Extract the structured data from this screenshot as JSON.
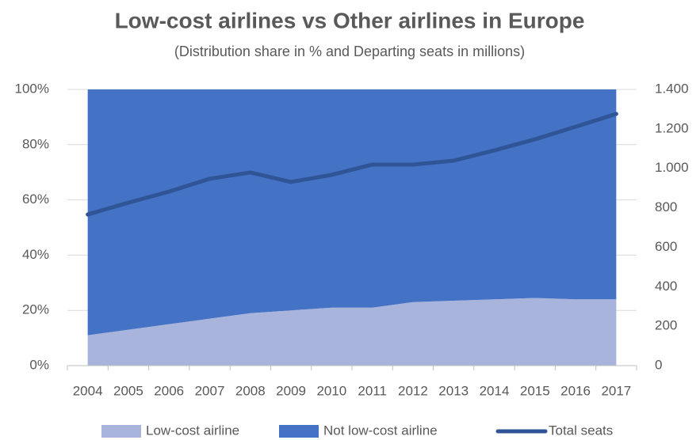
{
  "chart_data": {
    "type": "stacked-area-line",
    "title": "Low-cost airlines vs Other airlines in Europe",
    "subtitle": "(Distribution share in % and Departing seats in millions)",
    "categories": [
      "2004",
      "2005",
      "2006",
      "2007",
      "2008",
      "2009",
      "2010",
      "2011",
      "2012",
      "2013",
      "2014",
      "2015",
      "2016",
      "2017"
    ],
    "series": [
      {
        "name": "Low-cost airline",
        "color": "#a9b4dc",
        "kind": "area",
        "values": [
          11,
          13,
          15,
          17,
          19,
          20,
          21,
          21,
          23,
          23.5,
          24,
          24.5,
          24,
          24
        ]
      },
      {
        "name": "Not low-cost airline",
        "color": "#4472c4",
        "kind": "area",
        "values": [
          89,
          87,
          85,
          83,
          81,
          80,
          79,
          79,
          77,
          76.5,
          76,
          75.5,
          76,
          76
        ]
      },
      {
        "name": "Total seats",
        "color": "#2f5597",
        "kind": "line",
        "axis": "y2",
        "values": [
          766,
          826,
          882,
          947,
          979,
          931,
          967,
          1019,
          1019,
          1039,
          1091,
          1147,
          1211,
          1276
        ]
      }
    ],
    "ylim": [
      0,
      100
    ],
    "yticks": [
      {
        "value": 0,
        "label": "0%"
      },
      {
        "value": 20,
        "label": "20%"
      },
      {
        "value": 40,
        "label": "40%"
      },
      {
        "value": 60,
        "label": "60%"
      },
      {
        "value": 80,
        "label": "80%"
      },
      {
        "value": 100,
        "label": "100%"
      }
    ],
    "y2lim": [
      0,
      1400
    ],
    "y2ticks": [
      0,
      200,
      400,
      600,
      800,
      {
        "value": 1000,
        "label": "1.000"
      },
      {
        "value": 1200,
        "label": "1.200"
      },
      {
        "value": 1400,
        "label": "1.400"
      }
    ],
    "grid": true,
    "legend": "bottom"
  }
}
